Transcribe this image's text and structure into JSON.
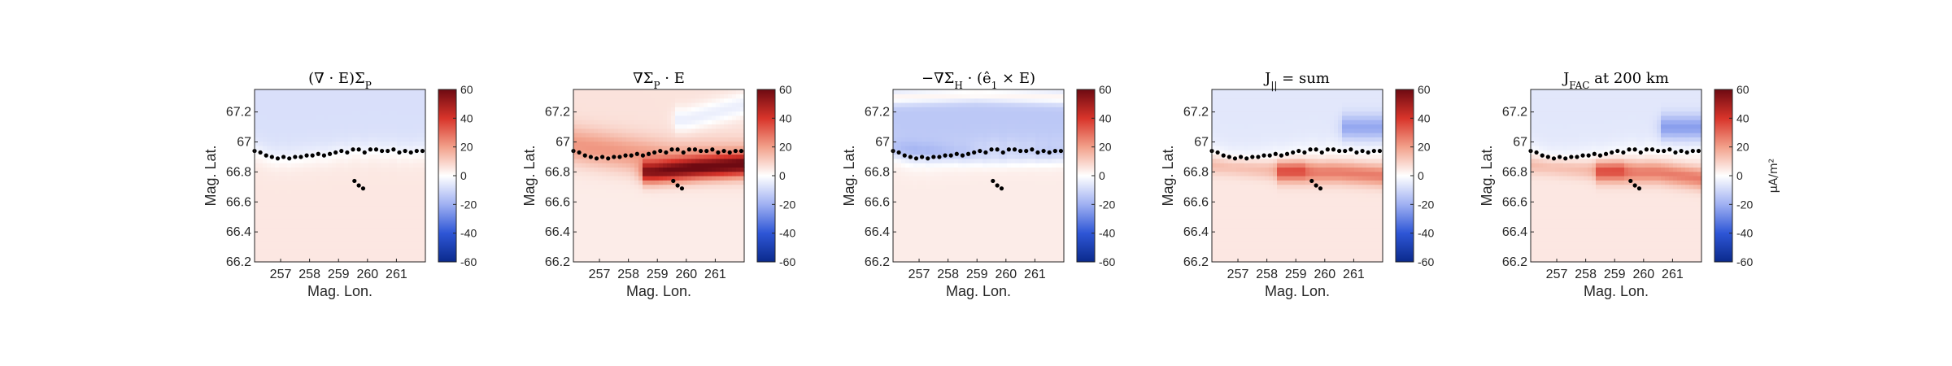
{
  "chart_data": [
    {
      "type": "heatmap",
      "title": "(∇ · E)ΣP",
      "title_parts": {
        "main": "(∇ · E)Σ",
        "sub": "P"
      },
      "xlabel": "Mag. Lon.",
      "ylabel": "Mag. Lat.",
      "xticks": [
        257,
        258,
        259,
        260,
        261
      ],
      "yticks": [
        66.2,
        66.4,
        66.6,
        66.8,
        67,
        67.2
      ],
      "xlim": [
        256.1,
        262.0
      ],
      "ylim": [
        66.2,
        67.35
      ],
      "colorbar": {
        "ticks": [
          60,
          40,
          20,
          0,
          -20,
          -40,
          -60
        ],
        "range": [
          -60,
          60
        ]
      },
      "field": {
        "north": -8,
        "south": 5,
        "bands": []
      }
    },
    {
      "type": "heatmap",
      "title": "∇ΣP · E",
      "title_parts": {
        "main": "∇Σ",
        "sub": "P",
        "tail": " · E"
      },
      "xlabel": "Mag. Lon.",
      "ylabel": "Mag. Lat.",
      "xticks": [
        257,
        258,
        259,
        260,
        261
      ],
      "yticks": [
        66.2,
        66.4,
        66.6,
        66.8,
        67,
        67.2
      ],
      "xlim": [
        256.1,
        262.0
      ],
      "ylim": [
        66.2,
        67.35
      ],
      "colorbar": {
        "ticks": [
          60,
          40,
          20,
          0,
          -20,
          -40,
          -60
        ],
        "range": [
          -60,
          60
        ]
      },
      "field": {
        "north": 6,
        "south": 4,
        "bands": [
          {
            "lon0": 256.1,
            "lat0": 66.98,
            "lon1": 259.5,
            "lat1": 66.88,
            "lon2": 262.0,
            "lat2": 66.88,
            "width": 0.12,
            "amp": 16
          },
          {
            "lon0": 258.9,
            "lat0": 66.8,
            "lon1": 260.5,
            "lat1": 66.83,
            "lon2": 262.0,
            "lat2": 66.85,
            "width": 0.07,
            "amp": 45
          },
          {
            "lon0": 260.0,
            "lat0": 67.15,
            "lon1": 261.0,
            "lat1": 67.2,
            "lon2": 262.0,
            "lat2": 67.25,
            "width": 0.08,
            "amp": -10
          }
        ]
      }
    },
    {
      "type": "heatmap",
      "title": "−∇ΣH · (ê1 × E)",
      "title_parts": {
        "main": "−∇Σ",
        "sub": "H",
        "tail": " · (ê",
        "sub2": "1",
        "tail2": " × E)"
      },
      "xlabel": "Mag. Lon.",
      "ylabel": "Mag. Lat.",
      "xticks": [
        257,
        258,
        259,
        260,
        261
      ],
      "yticks": [
        66.2,
        66.4,
        66.6,
        66.8,
        67,
        67.2
      ],
      "xlim": [
        256.1,
        262.0
      ],
      "ylim": [
        66.2,
        67.35
      ],
      "colorbar": {
        "ticks": [
          60,
          40,
          20,
          0,
          -20,
          -40,
          -60
        ],
        "range": [
          -60,
          60
        ]
      },
      "field": {
        "north": -14,
        "south": 4,
        "bands": [
          {
            "lon0": 256.1,
            "lat0": 67.3,
            "lon1": 259.0,
            "lat1": 67.32,
            "lon2": 262.0,
            "lat2": 67.3,
            "width": 0.05,
            "amp": 16
          },
          {
            "lon0": 256.1,
            "lat0": 66.95,
            "lon1": 259.5,
            "lat1": 66.9,
            "lon2": 262.0,
            "lat2": 66.92,
            "width": 0.06,
            "amp": -8
          }
        ]
      }
    },
    {
      "type": "heatmap",
      "title": "J|| = sum",
      "title_parts": {
        "main": "J",
        "sub": "||",
        "tail": " = sum"
      },
      "xlabel": "Mag. Lon.",
      "ylabel": "Mag. Lat.",
      "xticks": [
        257,
        258,
        259,
        260,
        261
      ],
      "yticks": [
        66.2,
        66.4,
        66.6,
        66.8,
        67,
        67.2
      ],
      "xlim": [
        256.1,
        262.0
      ],
      "ylim": [
        66.2,
        67.35
      ],
      "colorbar": {
        "ticks": [
          60,
          40,
          20,
          0,
          -20,
          -40,
          -60
        ],
        "range": [
          -60,
          60
        ]
      },
      "field": {
        "north": -6,
        "south": 5,
        "bands": [
          {
            "lon0": 258.8,
            "lat0": 66.8,
            "lon1": 260.5,
            "lat1": 66.8,
            "lon2": 262.0,
            "lat2": 66.78,
            "width": 0.07,
            "amp": 22
          },
          {
            "lon0": 256.1,
            "lat0": 66.85,
            "lon1": 258.0,
            "lat1": 66.82,
            "lon2": 259.0,
            "lat2": 66.82,
            "width": 0.06,
            "amp": 10
          },
          {
            "lon0": 261.0,
            "lat0": 67.1,
            "lon1": 261.5,
            "lat1": 67.1,
            "lon2": 262.0,
            "lat2": 67.1,
            "width": 0.08,
            "amp": -16
          }
        ]
      }
    },
    {
      "type": "heatmap",
      "title": "JFAC at 200 km",
      "title_parts": {
        "main": "J",
        "sub": "FAC",
        "tail": " at 200 km"
      },
      "xlabel": "Mag. Lon.",
      "ylabel": "Mag. Lat.",
      "xticks": [
        257,
        258,
        259,
        260,
        261
      ],
      "yticks": [
        66.2,
        66.4,
        66.6,
        66.8,
        67,
        67.2
      ],
      "xlim": [
        256.1,
        262.0
      ],
      "ylim": [
        66.2,
        67.35
      ],
      "colorbar": {
        "ticks": [
          60,
          40,
          20,
          0,
          -20,
          -40,
          -60
        ],
        "range": [
          -60,
          60
        ],
        "label": "μA/m²"
      },
      "field": {
        "north": -6,
        "south": 5,
        "bands": [
          {
            "lon0": 258.8,
            "lat0": 66.8,
            "lon1": 260.5,
            "lat1": 66.8,
            "lon2": 262.0,
            "lat2": 66.76,
            "width": 0.07,
            "amp": 22
          },
          {
            "lon0": 256.1,
            "lat0": 66.85,
            "lon1": 258.0,
            "lat1": 66.82,
            "lon2": 259.0,
            "lat2": 66.82,
            "width": 0.06,
            "amp": 10
          },
          {
            "lon0": 261.0,
            "lat0": 67.1,
            "lon1": 261.5,
            "lat1": 67.1,
            "lon2": 262.0,
            "lat2": 67.1,
            "width": 0.08,
            "amp": -18
          }
        ]
      }
    }
  ],
  "track": {
    "boundary": [
      [
        256.1,
        66.94
      ],
      [
        256.3,
        66.93
      ],
      [
        256.5,
        66.91
      ],
      [
        256.7,
        66.9
      ],
      [
        256.9,
        66.89
      ],
      [
        257.1,
        66.9
      ],
      [
        257.3,
        66.89
      ],
      [
        257.5,
        66.9
      ],
      [
        257.7,
        66.9
      ],
      [
        257.9,
        66.91
      ],
      [
        258.1,
        66.91
      ],
      [
        258.3,
        66.92
      ],
      [
        258.5,
        66.91
      ],
      [
        258.7,
        66.92
      ],
      [
        258.9,
        66.93
      ],
      [
        259.1,
        66.94
      ],
      [
        259.3,
        66.93
      ],
      [
        259.5,
        66.95
      ],
      [
        259.7,
        66.95
      ],
      [
        259.9,
        66.93
      ],
      [
        260.1,
        66.95
      ],
      [
        260.3,
        66.95
      ],
      [
        260.5,
        66.94
      ],
      [
        260.7,
        66.94
      ],
      [
        260.9,
        66.95
      ],
      [
        261.1,
        66.93
      ],
      [
        261.3,
        66.94
      ],
      [
        261.5,
        66.93
      ],
      [
        261.7,
        66.94
      ],
      [
        261.9,
        66.94
      ]
    ],
    "cluster": [
      [
        259.55,
        66.74
      ],
      [
        259.7,
        66.71
      ],
      [
        259.85,
        66.69
      ]
    ]
  },
  "colors": {
    "cmap": [
      "#0b2a8c",
      "#2e56d6",
      "#9fb0f2",
      "#ffffff",
      "#f2a08a",
      "#d8342a",
      "#6e0a12"
    ],
    "marker": "#000000"
  }
}
